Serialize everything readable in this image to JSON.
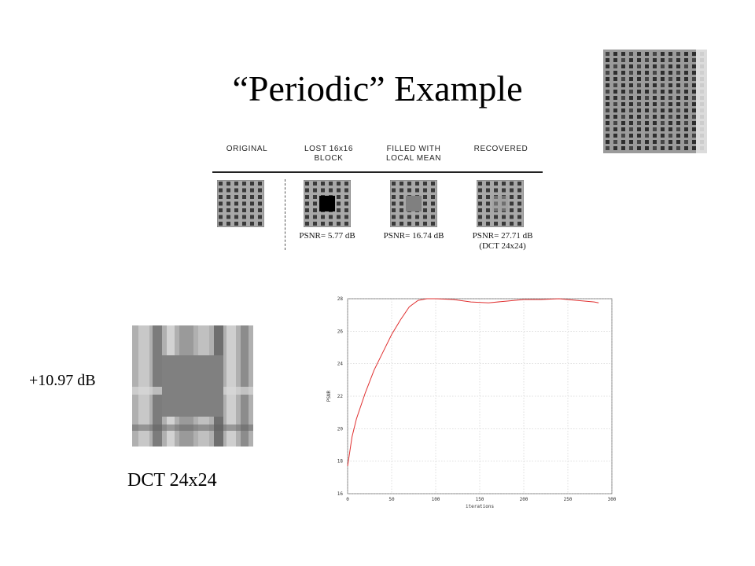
{
  "slide": {
    "title": "“Periodic” Example",
    "gain_label": "+10.97 dB",
    "zoom_caption": "DCT 24x24"
  },
  "figure": {
    "columns": [
      {
        "header": "ORIGINAL",
        "psnr": ""
      },
      {
        "header": "LOST 16x16\nBLOCK",
        "psnr": "PSNR= 5.77 dB"
      },
      {
        "header": "FILLED WITH\nLOCAL MEAN",
        "psnr": "PSNR= 16.74 dB"
      },
      {
        "header": "RECOVERED",
        "psnr": "PSNR= 27.71 dB\n(DCT 24x24)"
      }
    ]
  },
  "chart_data": {
    "type": "line",
    "title": "",
    "xlabel": "iterations",
    "ylabel": "PSNR",
    "xlim": [
      0,
      300
    ],
    "ylim": [
      16,
      28
    ],
    "xticks": [
      0,
      50,
      100,
      150,
      200,
      250,
      300
    ],
    "yticks": [
      16,
      18,
      20,
      22,
      24,
      26,
      28
    ],
    "grid": true,
    "series": [
      {
        "color": "#e03030",
        "x": [
          0,
          5,
          10,
          20,
          30,
          40,
          50,
          60,
          70,
          80,
          90,
          100,
          120,
          140,
          160,
          180,
          200,
          220,
          240,
          260,
          280,
          285
        ],
        "y": [
          17.7,
          19.5,
          20.6,
          22.2,
          23.6,
          24.7,
          25.8,
          26.7,
          27.5,
          27.9,
          28.0,
          28.0,
          27.95,
          27.8,
          27.75,
          27.85,
          27.95,
          27.95,
          28.0,
          27.9,
          27.8,
          27.75
        ]
      }
    ]
  }
}
